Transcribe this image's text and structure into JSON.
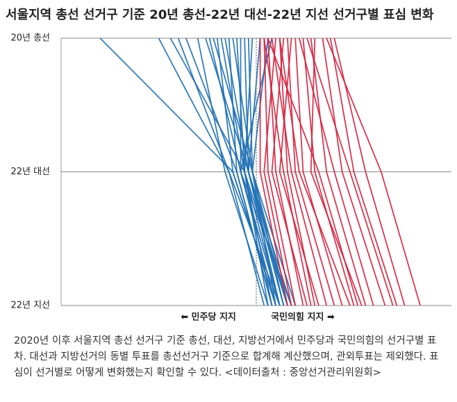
{
  "chart_data": {
    "type": "slope",
    "title": "서울지역 총선 선거구 기준 20년 총선-22년 대선-22년 지선 선거구별 표심 변화",
    "categories": [
      "20년 총선",
      "22년 대선",
      "22년 지선"
    ],
    "left_label": "⬅ 민주당 지지",
    "right_label": "국민의힘 지지 ➡",
    "xlim": [
      -50,
      50
    ],
    "series": [
      {
        "color": "#1f6fb2",
        "values": [
          -40,
          -6,
          5
        ]
      },
      {
        "color": "#1f6fb2",
        "values": [
          -25,
          -7,
          2
        ]
      },
      {
        "color": "#1f6fb2",
        "values": [
          -22,
          -3,
          8
        ]
      },
      {
        "color": "#1f6fb2",
        "values": [
          -20,
          -7,
          6
        ]
      },
      {
        "color": "#1f6fb2",
        "values": [
          -18,
          -5,
          4
        ]
      },
      {
        "color": "#1f6fb2",
        "values": [
          -15,
          -8,
          3
        ]
      },
      {
        "color": "#1f6fb2",
        "values": [
          -13,
          -2,
          7
        ]
      },
      {
        "color": "#1f6fb2",
        "values": [
          -12,
          -4,
          9
        ]
      },
      {
        "color": "#1f6fb2",
        "values": [
          -11,
          -1,
          10
        ]
      },
      {
        "color": "#1f6fb2",
        "values": [
          -10,
          -6,
          5
        ]
      },
      {
        "color": "#1f6fb2",
        "values": [
          -9,
          -3,
          6
        ]
      },
      {
        "color": "#1f6fb2",
        "values": [
          -8,
          -2,
          8
        ]
      },
      {
        "color": "#1f6fb2",
        "values": [
          -7,
          -5,
          4
        ]
      },
      {
        "color": "#1f6fb2",
        "values": [
          -6,
          -1,
          7
        ]
      },
      {
        "color": "#1f6fb2",
        "values": [
          -5,
          -3,
          3
        ]
      },
      {
        "color": "#1f6fb2",
        "values": [
          -4,
          -4,
          6
        ]
      },
      {
        "color": "#1f6fb2",
        "values": [
          -3,
          -2,
          9
        ]
      },
      {
        "color": "#1f6fb2",
        "values": [
          -2,
          -1,
          5
        ]
      },
      {
        "color": "#1f6fb2",
        "values": [
          -1,
          -3,
          4
        ]
      },
      {
        "color": "#1f6fb2",
        "values": [
          1,
          -2,
          6
        ]
      },
      {
        "color": "#1f6fb2",
        "values": [
          3,
          -1,
          8
        ]
      },
      {
        "color": "#1f6fb2",
        "values": [
          4,
          -4,
          5
        ]
      },
      {
        "color": "#d4213d",
        "values": [
          1,
          1,
          8
        ]
      },
      {
        "color": "#d4213d",
        "values": [
          2,
          3,
          10
        ]
      },
      {
        "color": "#d4213d",
        "values": [
          3,
          5,
          12
        ]
      },
      {
        "color": "#d4213d",
        "values": [
          5,
          2,
          9
        ]
      },
      {
        "color": "#d4213d",
        "values": [
          6,
          8,
          15
        ]
      },
      {
        "color": "#d4213d",
        "values": [
          7,
          4,
          13
        ]
      },
      {
        "color": "#d4213d",
        "values": [
          8,
          10,
          20
        ]
      },
      {
        "color": "#d4213d",
        "values": [
          9,
          6,
          16
        ]
      },
      {
        "color": "#d4213d",
        "values": [
          10,
          12,
          22
        ]
      },
      {
        "color": "#d4213d",
        "values": [
          12,
          15,
          25
        ]
      },
      {
        "color": "#d4213d",
        "values": [
          14,
          18,
          28
        ]
      },
      {
        "color": "#d4213d",
        "values": [
          15,
          14,
          27
        ]
      },
      {
        "color": "#d4213d",
        "values": [
          17,
          22,
          33
        ]
      },
      {
        "color": "#d4213d",
        "values": [
          19,
          25,
          36
        ]
      },
      {
        "color": "#d4213d",
        "values": [
          2,
          7,
          14
        ]
      },
      {
        "color": "#d4213d",
        "values": [
          4,
          9,
          18
        ]
      },
      {
        "color": "#d4213d",
        "values": [
          11,
          20,
          30
        ]
      },
      {
        "color": "#d4213d",
        "values": [
          20,
          28,
          38
        ]
      },
      {
        "color": "#d4213d",
        "values": [
          6,
          11,
          24
        ]
      },
      {
        "color": "#d4213d",
        "values": [
          3,
          16,
          26
        ]
      },
      {
        "color": "#d4213d",
        "values": [
          18,
          32,
          42
        ]
      },
      {
        "color": "#d4213d",
        "values": [
          13,
          24,
          35
        ]
      }
    ],
    "caption": "2020년 이후 서울지역 총선 선거구 기준 총선, 대선, 지방선거에서 민주당과 국민의힘의 선거구별 표차. 대선과 지방선거의 동별 투표를 총선선거구 기준으로 합계해 계산했으며, 관외투표는 제외했다. 표심이 선거별로 어떻게 변화했는지 확인할 수 있다. <데이터출처 : 중앙선거관리위원회>"
  }
}
